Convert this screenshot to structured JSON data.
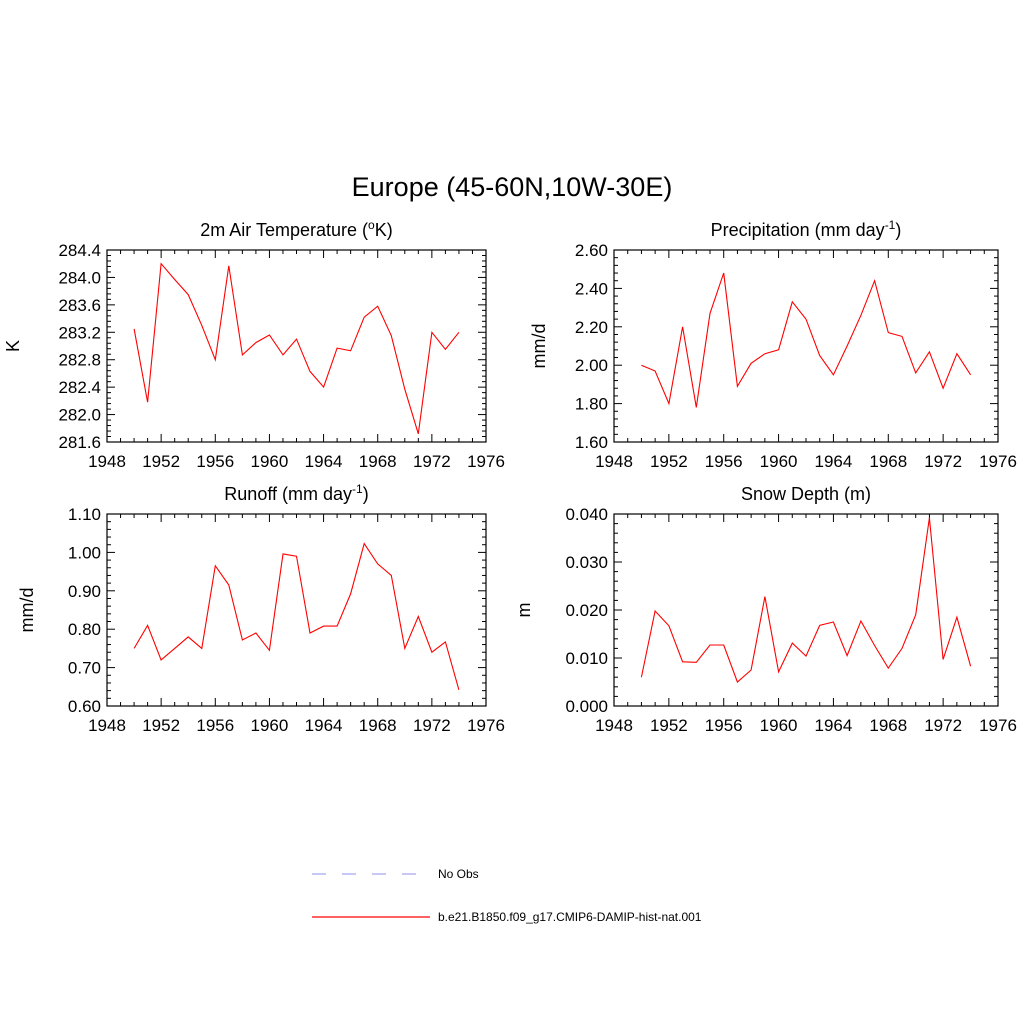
{
  "figure_title": "Europe (45-60N,10W-30E)",
  "chart_data": [
    {
      "type": "line",
      "title": "2m Air Temperature (",
      "title_sup": "o",
      "title_tail": "K)",
      "xlabel": "",
      "ylabel": "K",
      "xlim": [
        1948,
        1976
      ],
      "ylim": [
        281.6,
        284.4
      ],
      "xticks": [
        1948,
        1952,
        1956,
        1960,
        1964,
        1968,
        1972,
        1976
      ],
      "xtick_labels": [
        "1948",
        "1952",
        "1956",
        "1960",
        "1964",
        "1968",
        "1972",
        "1976"
      ],
      "yticks": [
        281.6,
        282.0,
        282.4,
        282.8,
        283.2,
        283.6,
        284.0,
        284.4
      ],
      "ytick_labels": [
        "281.6",
        "282.0",
        "282.4",
        "282.8",
        "283.2",
        "283.6",
        "284.0",
        "284.4"
      ],
      "color": "#ff0000",
      "series": [
        {
          "x": [
            1950,
            1951,
            1952,
            1953,
            1954,
            1955,
            1956,
            1957,
            1958,
            1959,
            1960,
            1961,
            1962,
            1963,
            1964,
            1965,
            1966,
            1967,
            1968,
            1969,
            1970,
            1971,
            1972,
            1973,
            1974
          ],
          "values": [
            283.25,
            282.18,
            284.2,
            283.97,
            283.75,
            283.3,
            282.8,
            284.17,
            282.87,
            283.05,
            283.16,
            282.87,
            283.1,
            282.63,
            282.4,
            282.97,
            282.93,
            283.42,
            283.58,
            283.15,
            282.37,
            281.72,
            283.2,
            282.95,
            283.2
          ]
        }
      ]
    },
    {
      "type": "line",
      "title": "Precipitation (mm day",
      "title_sup": "-1",
      "title_tail": ")",
      "xlabel": "",
      "ylabel": "mm/d",
      "xlim": [
        1948,
        1976
      ],
      "ylim": [
        1.6,
        2.6
      ],
      "xticks": [
        1948,
        1952,
        1956,
        1960,
        1964,
        1968,
        1972,
        1976
      ],
      "xtick_labels": [
        "1948",
        "1952",
        "1956",
        "1960",
        "1964",
        "1968",
        "1972",
        "1976"
      ],
      "yticks": [
        1.6,
        1.8,
        2.0,
        2.2,
        2.4,
        2.6
      ],
      "ytick_labels": [
        "1.60",
        "1.80",
        "2.00",
        "2.20",
        "2.40",
        "2.60"
      ],
      "color": "#ff0000",
      "series": [
        {
          "x": [
            1950,
            1951,
            1952,
            1953,
            1954,
            1955,
            1956,
            1957,
            1958,
            1959,
            1960,
            1961,
            1962,
            1963,
            1964,
            1965,
            1966,
            1967,
            1968,
            1969,
            1970,
            1971,
            1972,
            1973,
            1974
          ],
          "values": [
            2.0,
            1.97,
            1.8,
            2.2,
            1.78,
            2.27,
            2.48,
            1.89,
            2.01,
            2.06,
            2.08,
            2.33,
            2.24,
            2.05,
            1.95,
            2.1,
            2.26,
            2.44,
            2.17,
            2.15,
            1.96,
            2.07,
            1.88,
            2.06,
            1.95
          ]
        }
      ]
    },
    {
      "type": "line",
      "title": "Runoff (mm day",
      "title_sup": "-1",
      "title_tail": ")",
      "xlabel": "",
      "ylabel": "mm/d",
      "xlim": [
        1948,
        1976
      ],
      "ylim": [
        0.6,
        1.1
      ],
      "xticks": [
        1948,
        1952,
        1956,
        1960,
        1964,
        1968,
        1972,
        1976
      ],
      "xtick_labels": [
        "1948",
        "1952",
        "1956",
        "1960",
        "1964",
        "1968",
        "1972",
        "1976"
      ],
      "yticks": [
        0.6,
        0.7,
        0.8,
        0.9,
        1.0,
        1.1
      ],
      "ytick_labels": [
        "0.60",
        "0.70",
        "0.80",
        "0.90",
        "1.00",
        "1.10"
      ],
      "color": "#ff0000",
      "series": [
        {
          "x": [
            1950,
            1951,
            1952,
            1953,
            1954,
            1955,
            1956,
            1957,
            1958,
            1959,
            1960,
            1961,
            1962,
            1963,
            1964,
            1965,
            1966,
            1967,
            1968,
            1969,
            1970,
            1971,
            1972,
            1973,
            1974
          ],
          "values": [
            0.75,
            0.81,
            0.72,
            0.75,
            0.78,
            0.75,
            0.965,
            0.915,
            0.772,
            0.79,
            0.745,
            0.996,
            0.99,
            0.79,
            0.808,
            0.808,
            0.892,
            1.023,
            0.97,
            0.94,
            0.75,
            0.833,
            0.74,
            0.767,
            0.642
          ]
        }
      ]
    },
    {
      "type": "line",
      "title": "Snow Depth (m)",
      "title_sup": "",
      "title_tail": "",
      "xlabel": "",
      "ylabel": "m",
      "xlim": [
        1948,
        1976
      ],
      "ylim": [
        0.0,
        0.04
      ],
      "xticks": [
        1948,
        1952,
        1956,
        1960,
        1964,
        1968,
        1972,
        1976
      ],
      "xtick_labels": [
        "1948",
        "1952",
        "1956",
        "1960",
        "1964",
        "1968",
        "1972",
        "1976"
      ],
      "yticks": [
        0.0,
        0.01,
        0.02,
        0.03,
        0.04
      ],
      "ytick_labels": [
        "0.000",
        "0.010",
        "0.020",
        "0.030",
        "0.040"
      ],
      "color": "#ff0000",
      "series": [
        {
          "x": [
            1950,
            1951,
            1952,
            1953,
            1954,
            1955,
            1956,
            1957,
            1958,
            1959,
            1960,
            1961,
            1962,
            1963,
            1964,
            1965,
            1966,
            1967,
            1968,
            1969,
            1970,
            1971,
            1972,
            1973,
            1974
          ],
          "values": [
            0.006,
            0.0198,
            0.0167,
            0.0092,
            0.0091,
            0.0127,
            0.0127,
            0.005,
            0.0075,
            0.0228,
            0.0071,
            0.0131,
            0.0104,
            0.0168,
            0.0175,
            0.0105,
            0.0177,
            0.0126,
            0.0079,
            0.012,
            0.019,
            0.0392,
            0.0097,
            0.0185,
            0.0083
          ]
        }
      ]
    }
  ],
  "legend": {
    "items": [
      {
        "label": "No Obs",
        "style": "dashed",
        "color": "#a8a8f0"
      },
      {
        "label": "b.e21.B1850.f09_g17.CMIP6-DAMIP-hist-nat.001",
        "style": "solid",
        "color": "#ff0000"
      }
    ]
  }
}
